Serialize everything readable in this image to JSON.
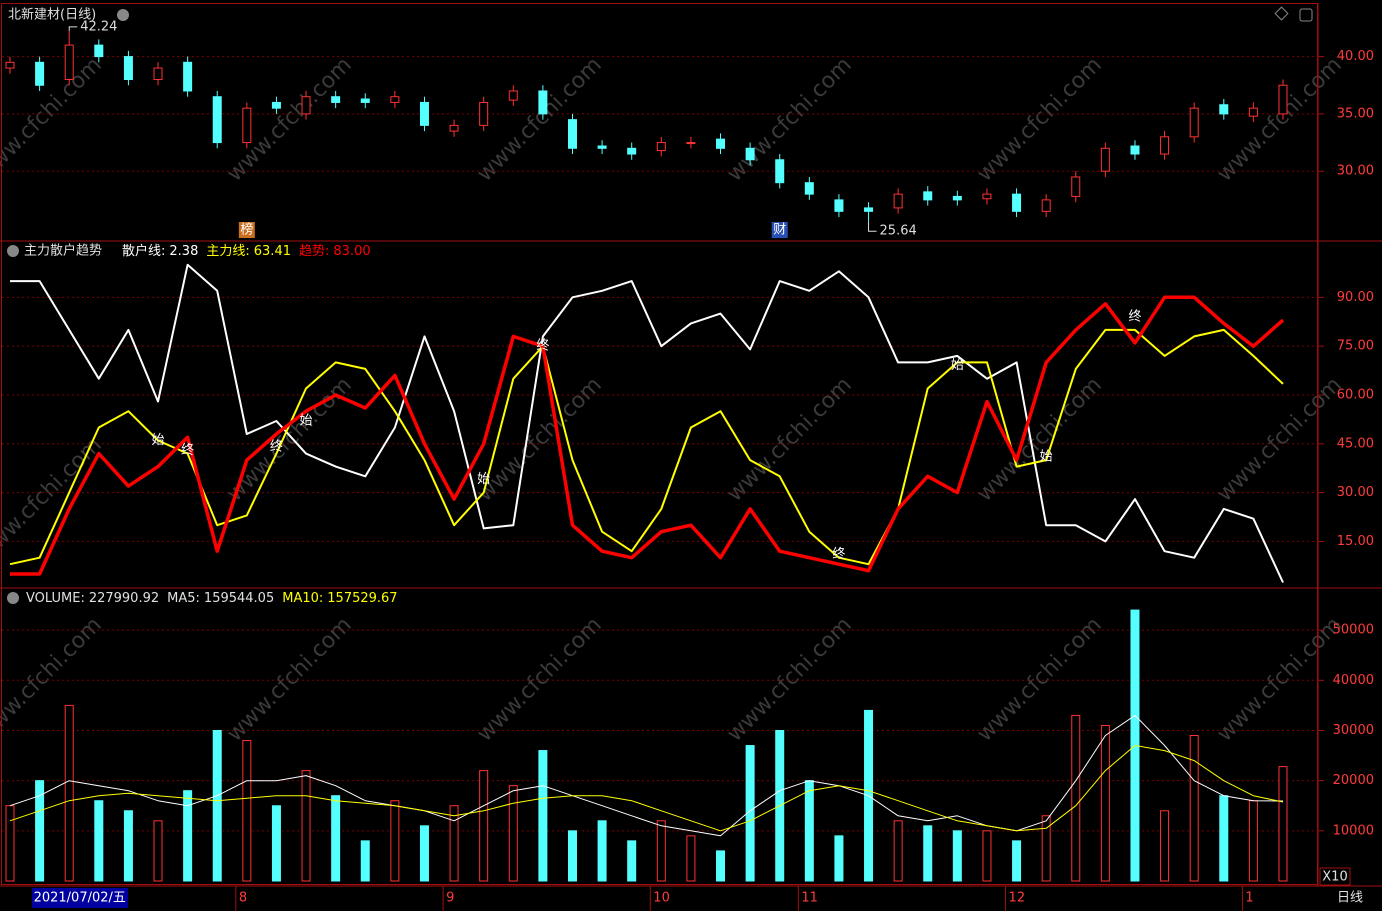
{
  "header": {
    "title": "北新建材(日线)",
    "watermark": "www.cfchi.com",
    "legend_separator": ":",
    "period": "日线",
    "multiplier": "X10"
  },
  "time_axis": {
    "cursor_date": "2021/07/02/五",
    "cursor_index": 1,
    "months": [
      {
        "label": "8",
        "index": 8
      },
      {
        "label": "9",
        "index": 15
      },
      {
        "label": "10",
        "index": 22
      },
      {
        "label": "11",
        "index": 27
      },
      {
        "label": "12",
        "index": 34
      },
      {
        "label": "1",
        "index": 42
      }
    ]
  },
  "chart_data": [
    {
      "type": "candlestick",
      "up_color": "#ff3232",
      "down_color": "#54ffff",
      "open": [
        39,
        39.5,
        38,
        41,
        40,
        38,
        39.5,
        36.5,
        32.5,
        36,
        35,
        36.5,
        36.3,
        36,
        36,
        33.5,
        34,
        36.2,
        37,
        34.5,
        32.2,
        32,
        31.8,
        32.5,
        32.8,
        32,
        31,
        29,
        27.5,
        26.8,
        26.8,
        28.2,
        27.8,
        27.6,
        28,
        26.5,
        27.8,
        30,
        32.2,
        31.5,
        33,
        35.8,
        34.8,
        35
      ],
      "high": [
        40,
        40,
        42.24,
        41.5,
        40.5,
        39.5,
        40,
        37,
        36,
        36.5,
        37,
        37,
        36.8,
        37,
        36.5,
        34.5,
        36.5,
        37.5,
        37.5,
        35,
        32.7,
        32.5,
        33,
        33,
        33.3,
        32.5,
        31.5,
        29.5,
        28,
        27.3,
        28.5,
        28.7,
        28.3,
        28.5,
        28.5,
        28,
        30,
        32.5,
        32.7,
        33.5,
        36,
        36.3,
        36,
        38
      ],
      "low": [
        38.5,
        37,
        37.5,
        39.5,
        37.5,
        37.5,
        36.5,
        32,
        32,
        35,
        34.5,
        35.5,
        35.5,
        35.5,
        33.5,
        33,
        33.5,
        35.7,
        34.5,
        31.5,
        31.5,
        31,
        31.3,
        32,
        31.5,
        30.5,
        28.5,
        27.5,
        26,
        25.64,
        26.3,
        27,
        27,
        27.1,
        26,
        26,
        27.3,
        29.5,
        31,
        31,
        32.5,
        34.5,
        34.3,
        34.5
      ],
      "close": [
        39.5,
        37.5,
        41,
        40,
        38,
        39,
        37,
        32.5,
        35.5,
        35.5,
        36.5,
        36,
        36,
        36.5,
        34,
        34,
        36,
        37,
        35,
        32,
        32,
        31.5,
        32.5,
        32.5,
        32,
        31,
        29,
        28,
        26.5,
        26.5,
        28,
        27.5,
        27.5,
        28,
        26.5,
        27.5,
        29.5,
        32,
        31.5,
        33,
        35.5,
        35,
        35.5,
        37.5
      ],
      "ylim": [
        24,
        44.5
      ],
      "yticks": [
        {
          "value": 30,
          "label": "30.00"
        },
        {
          "value": 35,
          "label": "35.00"
        },
        {
          "value": 40,
          "label": "40.00"
        }
      ],
      "grid": true,
      "price_labels": [
        {
          "index": 2,
          "value": 42.24
        },
        {
          "index": 29,
          "value": 25.64
        }
      ],
      "markers": [
        {
          "index": 8,
          "text": "榜",
          "color": "#c86e1e"
        },
        {
          "index": 26,
          "text": "财",
          "color": "#2850b4"
        }
      ]
    },
    {
      "type": "line",
      "title": "主力散户趋势",
      "ylim": [
        1,
        107
      ],
      "yticks": [
        {
          "value": 15,
          "label": "15.00"
        },
        {
          "value": 30,
          "label": "30.00"
        },
        {
          "value": 45,
          "label": "45.00"
        },
        {
          "value": 60,
          "label": "60.00"
        },
        {
          "value": 75,
          "label": "75.00"
        },
        {
          "value": 90,
          "label": "90.00"
        }
      ],
      "grid": true,
      "series": [
        {
          "name": "散户线",
          "readout": "2.38",
          "color": "#ffffff",
          "width": 2,
          "values": [
            95,
            95,
            80,
            65,
            80,
            58,
            100,
            92,
            48,
            52,
            42,
            38,
            35,
            50,
            78,
            55,
            19,
            20,
            78,
            90,
            92,
            95,
            75,
            82,
            85,
            74,
            95,
            92,
            98,
            90,
            70,
            70,
            72,
            65,
            70,
            20,
            20,
            15,
            28,
            12,
            10,
            25,
            22,
            2.38
          ]
        },
        {
          "name": "主力线",
          "readout": "63.41",
          "color": "#ffff00",
          "width": 2,
          "values": [
            8,
            10,
            30,
            50,
            55,
            46,
            42,
            20,
            23,
            42,
            62,
            70,
            68,
            55,
            40,
            20,
            30,
            65,
            75,
            40,
            18,
            12,
            25,
            50,
            55,
            40,
            35,
            18,
            10,
            8,
            25,
            62,
            70,
            70,
            38,
            40,
            68,
            80,
            80,
            72,
            78,
            80,
            72,
            63.41
          ]
        },
        {
          "name": "趋势",
          "readout": "83.00",
          "color": "#ff0000",
          "width": 3.5,
          "values": [
            5,
            5,
            25,
            42,
            32,
            38,
            47,
            12,
            40,
            48,
            55,
            60,
            56,
            66,
            45,
            28,
            45,
            78,
            75,
            20,
            12,
            10,
            18,
            20,
            10,
            25,
            12,
            10,
            8,
            6,
            25,
            35,
            30,
            58,
            40,
            70,
            80,
            88,
            76,
            90,
            90,
            82,
            75,
            83
          ]
        }
      ],
      "annotations": [
        {
          "index": 5,
          "value": 46,
          "text": "始"
        },
        {
          "index": 6,
          "value": 43,
          "text": "终"
        },
        {
          "index": 9,
          "value": 44,
          "text": "终"
        },
        {
          "index": 10,
          "value": 52,
          "text": "始"
        },
        {
          "index": 16,
          "value": 34,
          "text": "始"
        },
        {
          "index": 18,
          "value": 75,
          "text": "终"
        },
        {
          "index": 28,
          "value": 11,
          "text": "终"
        },
        {
          "index": 32,
          "value": 69,
          "text": "始"
        },
        {
          "index": 35,
          "value": 41,
          "text": "始"
        },
        {
          "index": 38,
          "value": 84,
          "text": "终"
        }
      ]
    },
    {
      "type": "bar",
      "ylim": [
        0,
        58000
      ],
      "yticks": [
        10000,
        20000,
        30000,
        40000,
        50000
      ],
      "grid": true,
      "series": [
        {
          "name": "VOLUME",
          "readout": "227990.92",
          "color": "#ffffff",
          "values": [
            15000,
            20000,
            35000,
            16000,
            14000,
            12000,
            18000,
            30000,
            28000,
            15000,
            22000,
            17000,
            8000,
            16000,
            11000,
            15000,
            22000,
            19000,
            26000,
            10000,
            12000,
            8000,
            12000,
            9000,
            6000,
            27000,
            30000,
            20000,
            9000,
            34000,
            12000,
            11000,
            10000,
            10000,
            8000,
            13000,
            33000,
            31000,
            54000,
            14000,
            29000,
            17000,
            16000,
            22799.092
          ]
        },
        {
          "name": "MA5",
          "readout": "159544.05",
          "color": "#ffffff",
          "values": [
            15000,
            17000,
            20000,
            19000,
            18000,
            16000,
            15000,
            17000,
            20000,
            20000,
            21000,
            19000,
            16000,
            15000,
            14000,
            12000,
            15000,
            18000,
            19000,
            17000,
            15000,
            13000,
            11000,
            10000,
            9000,
            14000,
            18000,
            20000,
            19000,
            17000,
            13000,
            12000,
            13000,
            11000,
            10000,
            12000,
            20000,
            29000,
            33000,
            27000,
            20000,
            17000,
            16000,
            15954.405
          ]
        },
        {
          "name": "MA10",
          "readout": "157529.67",
          "color": "#ffff00",
          "values": [
            12000,
            14000,
            16000,
            17000,
            17500,
            17000,
            16500,
            16000,
            16500,
            17000,
            17000,
            16000,
            15500,
            15000,
            14000,
            13000,
            14000,
            15500,
            16500,
            17000,
            17000,
            16000,
            14000,
            12000,
            10000,
            12000,
            15000,
            18000,
            19000,
            18000,
            16000,
            14000,
            12000,
            11000,
            10000,
            10500,
            15000,
            22000,
            27000,
            26000,
            24000,
            20000,
            17000,
            15752.967
          ]
        }
      ]
    }
  ]
}
